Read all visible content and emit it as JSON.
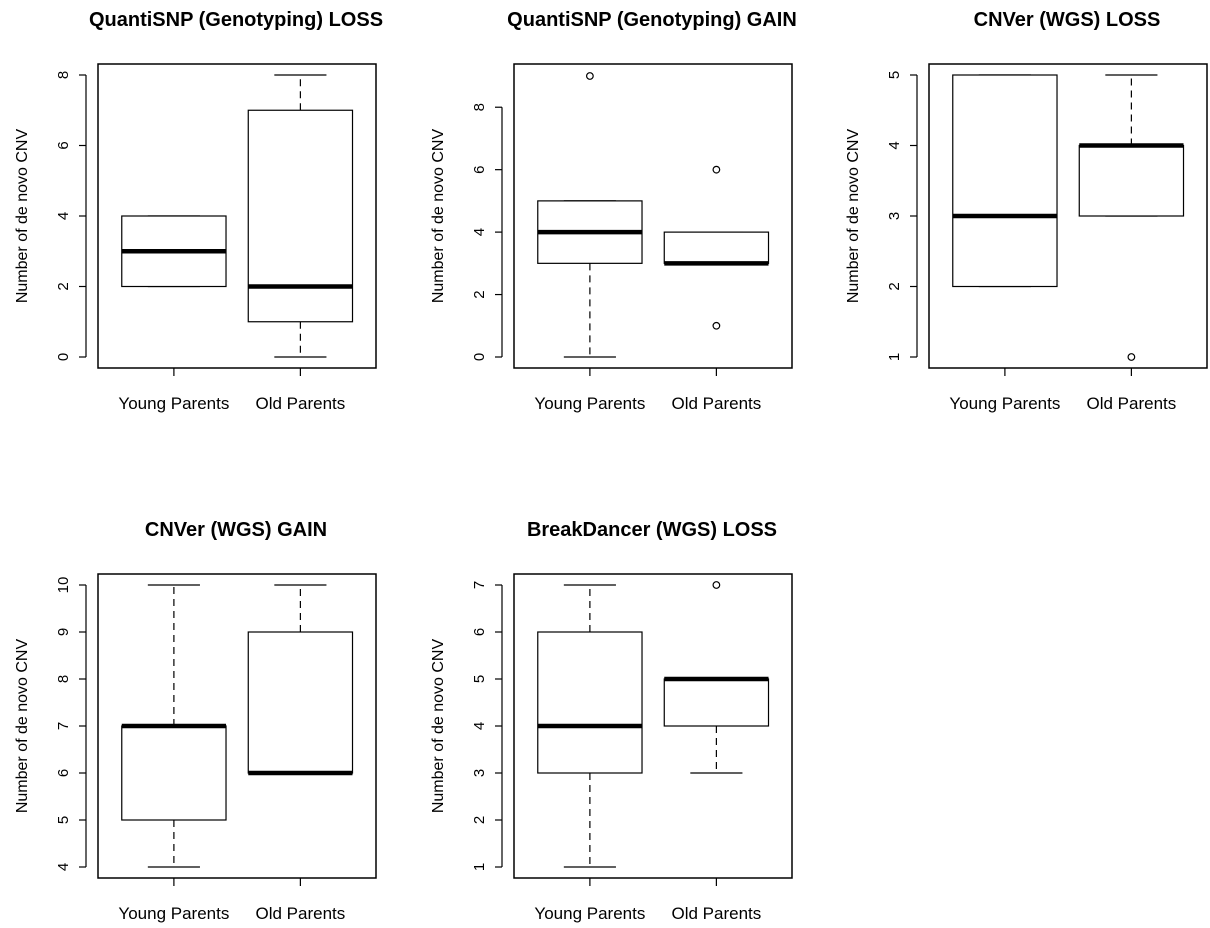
{
  "chart_data": [
    {
      "type": "box",
      "title": "QuantiSNP (Genotyping) LOSS",
      "ylabel": "Number of de novo CNV",
      "categories": [
        "Young Parents",
        "Old Parents"
      ],
      "ylim": [
        0,
        8
      ],
      "yticks": [
        0,
        2,
        4,
        6,
        8
      ],
      "boxes": [
        {
          "whisker_low": 2,
          "q1": 2,
          "median": 3,
          "q3": 4,
          "whisker_high": 4,
          "outliers": []
        },
        {
          "whisker_low": 0,
          "q1": 1,
          "median": 2,
          "q3": 7,
          "whisker_high": 8,
          "outliers": []
        }
      ]
    },
    {
      "type": "box",
      "title": "QuantiSNP (Genotyping) GAIN",
      "ylabel": "Number of de novo CNV",
      "categories": [
        "Young Parents",
        "Old Parents"
      ],
      "ylim": [
        0,
        9
      ],
      "yticks": [
        0,
        2,
        4,
        6,
        8
      ],
      "boxes": [
        {
          "whisker_low": 0,
          "q1": 3,
          "median": 4,
          "q3": 5,
          "whisker_high": 5,
          "outliers": [
            9
          ]
        },
        {
          "whisker_low": 3,
          "q1": 3,
          "median": 3,
          "q3": 4,
          "whisker_high": 4,
          "outliers": [
            1,
            6
          ]
        }
      ]
    },
    {
      "type": "box",
      "title": "CNVer (WGS) LOSS",
      "ylabel": "Number of de novo CNV",
      "categories": [
        "Young Parents",
        "Old Parents"
      ],
      "ylim": [
        1,
        5
      ],
      "yticks": [
        1,
        2,
        3,
        4,
        5
      ],
      "boxes": [
        {
          "whisker_low": 2,
          "q1": 2,
          "median": 3,
          "q3": 5,
          "whisker_high": 5,
          "outliers": []
        },
        {
          "whisker_low": 3,
          "q1": 3,
          "median": 4,
          "q3": 4,
          "whisker_high": 5,
          "outliers": [
            1
          ]
        }
      ]
    },
    {
      "type": "box",
      "title": "CNVer (WGS) GAIN",
      "ylabel": "Number of de novo CNV",
      "categories": [
        "Young Parents",
        "Old Parents"
      ],
      "ylim": [
        4,
        10
      ],
      "yticks": [
        4,
        5,
        6,
        7,
        8,
        9,
        10
      ],
      "boxes": [
        {
          "whisker_low": 4,
          "q1": 5,
          "median": 7,
          "q3": 7,
          "whisker_high": 10,
          "outliers": []
        },
        {
          "whisker_low": 6,
          "q1": 6,
          "median": 6,
          "q3": 9,
          "whisker_high": 10,
          "outliers": []
        }
      ]
    },
    {
      "type": "box",
      "title": "BreakDancer (WGS) LOSS",
      "ylabel": "Number of de novo CNV",
      "categories": [
        "Young Parents",
        "Old Parents"
      ],
      "ylim": [
        1,
        7
      ],
      "yticks": [
        1,
        2,
        3,
        4,
        5,
        6,
        7
      ],
      "boxes": [
        {
          "whisker_low": 1,
          "q1": 3,
          "median": 4,
          "q3": 6,
          "whisker_high": 7,
          "outliers": []
        },
        {
          "whisker_low": 3,
          "q1": 4,
          "median": 5,
          "q3": 5,
          "whisker_high": 5,
          "outliers": [
            7
          ]
        }
      ]
    }
  ]
}
